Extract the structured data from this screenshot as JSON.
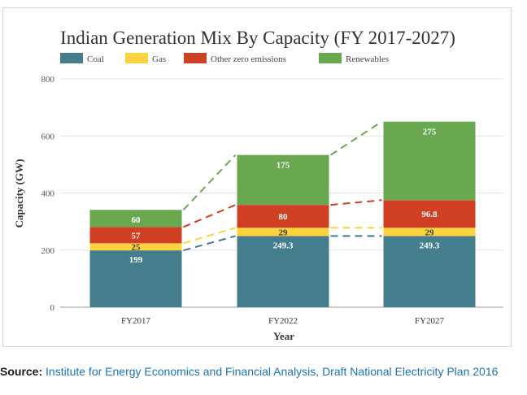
{
  "chart_data": {
    "type": "bar",
    "stacked": true,
    "title": "Indian Generation Mix By Capacity (FY 2017-2027)",
    "xlabel": "Year",
    "ylabel": "Capacity (GW)",
    "ylim": [
      0,
      800
    ],
    "yticks": [
      0,
      200,
      400,
      600,
      800
    ],
    "grid": true,
    "legend_position": "top",
    "categories": [
      "FY2017",
      "FY2022",
      "FY2027"
    ],
    "series": [
      {
        "name": "Coal",
        "color": "#447e8c",
        "values": [
          199,
          249.3,
          249.3
        ],
        "labels": [
          "199",
          "249.3",
          "249.3"
        ]
      },
      {
        "name": "Gas",
        "color": "#fcd33c",
        "values": [
          25,
          29,
          29
        ],
        "labels": [
          "25",
          "29",
          "29"
        ]
      },
      {
        "name": "Other zero emissions",
        "color": "#cf3f23",
        "values": [
          57,
          80,
          96.8
        ],
        "labels": [
          "57",
          "80",
          "96.8"
        ]
      },
      {
        "name": "Renewables",
        "color": "#6aa84f",
        "values": [
          60,
          175,
          275
        ],
        "labels": [
          "60",
          "175",
          "275"
        ]
      }
    ]
  },
  "source": {
    "label": "Source:",
    "text": "Institute for Energy Economics and Financial Analysis, Draft National Electricity Plan 2016"
  }
}
